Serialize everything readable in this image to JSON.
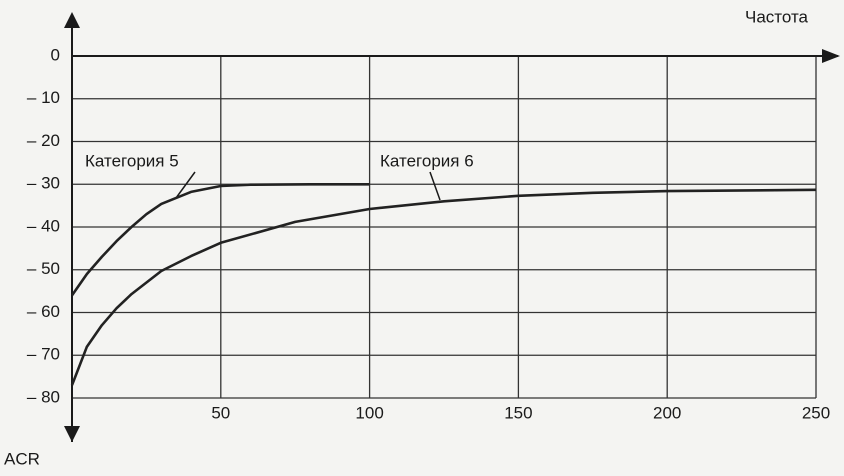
{
  "chart_data": {
    "type": "line",
    "x_label": "Частота",
    "y_label": "ACR",
    "xlim": [
      0,
      250
    ],
    "ylim": [
      -80,
      0
    ],
    "xticks": [
      50,
      100,
      150,
      200,
      250
    ],
    "yticks": [
      0,
      {
        "value": -10,
        "label": "– 10"
      },
      {
        "value": -20,
        "label": "– 20"
      },
      {
        "value": -30,
        "label": "– 30"
      },
      {
        "value": -40,
        "label": "– 40"
      },
      {
        "value": -50,
        "label": "– 50"
      },
      {
        "value": -60,
        "label": "– 60"
      },
      {
        "value": -70,
        "label": "– 70"
      },
      {
        "value": -80,
        "label": "– 80"
      }
    ],
    "grid": true,
    "series": [
      {
        "name": "Категория 5",
        "color": "#222222",
        "x": [
          0,
          5,
          10,
          15,
          20,
          25,
          30,
          40,
          50,
          60,
          80,
          100
        ],
        "values": [
          -56,
          -51,
          -47,
          -43.3,
          -40,
          -37,
          -34.6,
          -31.8,
          -30.4,
          -30.1,
          -30,
          -30
        ]
      },
      {
        "name": "Категория 6",
        "color": "#222222",
        "x": [
          0,
          5,
          10,
          15,
          20,
          30,
          40,
          50,
          75,
          100,
          125,
          150,
          175,
          200,
          250
        ],
        "values": [
          -77,
          -68,
          -63,
          -59,
          -55.7,
          -50.3,
          -46.8,
          -43.7,
          -38.8,
          -35.8,
          -34,
          -32.7,
          -32,
          -31.6,
          -31.3
        ]
      }
    ]
  }
}
